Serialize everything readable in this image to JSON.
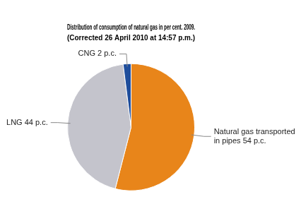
{
  "chart_data": {
    "type": "pie",
    "title": "Distribution of consumption of natural gas in per cent. 2009.",
    "subtitle": "(Corrected 26 April 2010 at 14:57 p.m.)",
    "values": [
      54,
      44,
      2
    ],
    "value_labels": [
      "Natural gas transported\nin pipes 54 p.c.",
      "LNG 44 p.c.",
      "CNG 2 p.c."
    ],
    "colors": [
      "#E8851A",
      "#C4C4CC",
      "#1F4E9C"
    ],
    "data_labels": true
  }
}
